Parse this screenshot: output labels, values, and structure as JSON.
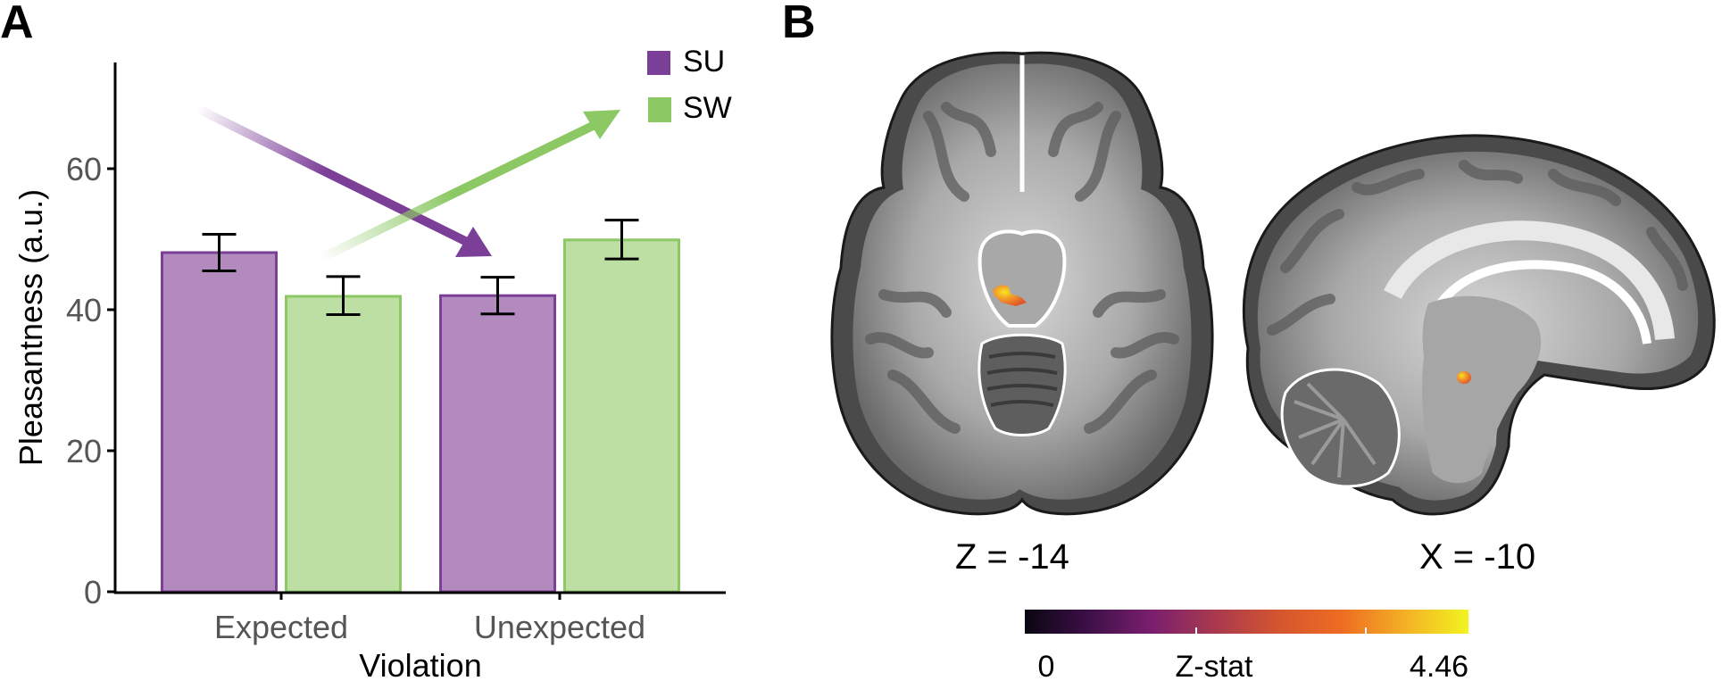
{
  "panels": {
    "a": {
      "letter": "A"
    },
    "b": {
      "letter": "B"
    }
  },
  "chart_data": [
    {
      "type": "bar",
      "panel": "A",
      "title": "",
      "xlabel": "Violation",
      "ylabel": "Pleasantness (a.u.)",
      "categories": [
        "Expected",
        "Unexpected"
      ],
      "ylim": [
        0,
        75
      ],
      "yticks": [
        0,
        20,
        40,
        60
      ],
      "ytick_labels": [
        "0",
        "20",
        "40",
        "60"
      ],
      "grid": false,
      "legend": {
        "placement": "top-right",
        "entries": [
          "SU",
          "SW"
        ]
      },
      "series": [
        {
          "name": "SU",
          "color": "#7b3f98",
          "fill": "#b38abd",
          "values": [
            48.1,
            42.0
          ],
          "error_low": [
            45.5,
            39.4
          ],
          "error_high": [
            50.7,
            44.6
          ]
        },
        {
          "name": "SW",
          "color": "#8cc864",
          "fill": "#bedfa3",
          "values": [
            41.9,
            49.9
          ],
          "error_low": [
            39.3,
            47.2
          ],
          "error_high": [
            44.7,
            52.7
          ]
        }
      ],
      "annotations": [
        {
          "type": "arrow",
          "series": "SU",
          "direction": "decrease",
          "from": "Expected",
          "to": "Unexpected"
        },
        {
          "type": "arrow",
          "series": "SW",
          "direction": "increase",
          "from": "Expected",
          "to": "Unexpected"
        }
      ]
    },
    {
      "type": "heatmap",
      "panel": "B",
      "slices": [
        {
          "label": "Z = -14",
          "view": "axial"
        },
        {
          "label": "X = -10",
          "view": "sagittal"
        }
      ],
      "colorbar": {
        "title": "Z-stat",
        "min": 0,
        "max": 4.46,
        "min_label": "0",
        "max_label": "4.46",
        "colormap": "inferno",
        "stops": [
          "#0a0612",
          "#3d0f47",
          "#7a1f6e",
          "#a8394f",
          "#d4552f",
          "#ee6c22",
          "#f4b026",
          "#f2f41f"
        ]
      }
    }
  ]
}
